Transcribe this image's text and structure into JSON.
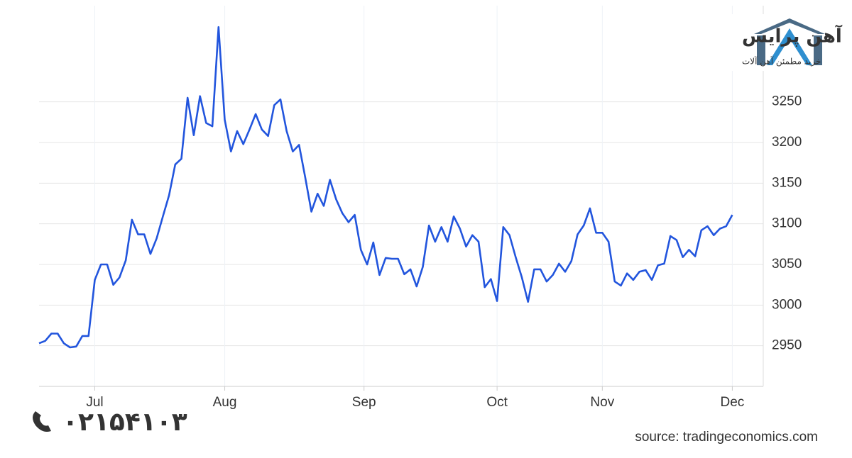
{
  "logo": {
    "name": "آهن پرایس",
    "tagline": "خرید مطمئن آهن آلات"
  },
  "phone": "۰۲۱۵۴۱۰۳",
  "chart_data": {
    "type": "line",
    "source": "source: tradingeconomics.com",
    "color": "#2255dd",
    "values": [
      2953,
      2956,
      2965,
      2965,
      2953,
      2948,
      2949,
      2962,
      2962,
      3031,
      3050,
      3050,
      3025,
      3034,
      3055,
      3105,
      3087,
      3087,
      3063,
      3082,
      3109,
      3135,
      3173,
      3180,
      3255,
      3209,
      3257,
      3224,
      3220,
      3342,
      3228,
      3189,
      3214,
      3198,
      3216,
      3235,
      3216,
      3208,
      3246,
      3253,
      3214,
      3189,
      3197,
      3157,
      3115,
      3137,
      3122,
      3154,
      3130,
      3113,
      3102,
      3111,
      3068,
      3050,
      3077,
      3037,
      3058,
      3057,
      3057,
      3038,
      3044,
      3023,
      3047,
      3098,
      3078,
      3096,
      3078,
      3109,
      3094,
      3072,
      3086,
      3078,
      3022,
      3032,
      3005,
      3096,
      3086,
      3059,
      3034,
      3004,
      3044,
      3044,
      3029,
      3037,
      3051,
      3041,
      3054,
      3087,
      3098,
      3119,
      3089,
      3089,
      3078,
      3029,
      3024,
      3039,
      3031,
      3041,
      3043,
      3031,
      3049,
      3051,
      3085,
      3080,
      3059,
      3068,
      3060,
      3092,
      3097,
      3086,
      3094,
      3097,
      3111
    ],
    "xlim": [
      0,
      117
    ],
    "xticks": [
      {
        "value": 9,
        "label": "Jul"
      },
      {
        "value": 30,
        "label": "Aug"
      },
      {
        "value": 52.5,
        "label": "Sep"
      },
      {
        "value": 74,
        "label": "Oct"
      },
      {
        "value": 91,
        "label": "Nov"
      },
      {
        "value": 112,
        "label": "Dec"
      }
    ],
    "ylim": [
      2900,
      3350
    ],
    "yticks": [
      2950,
      3000,
      3050,
      3100,
      3150,
      3200,
      3250
    ],
    "grid": true
  }
}
